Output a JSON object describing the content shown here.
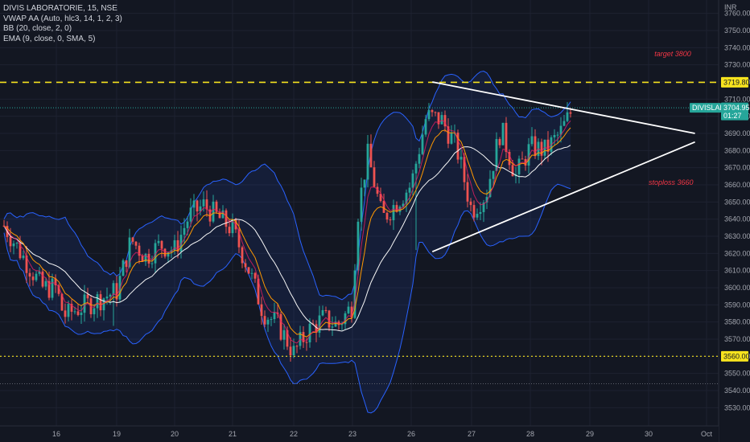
{
  "legend": {
    "title": "DIVIS LABORATORIE, 15, NSE",
    "vwap": "VWAP AA (Auto, hlc3, 14, 1, 2, 3)",
    "bb": "BB (20, close, 2, 0)",
    "ema": "EMA (9, close, 0, SMA, 5)"
  },
  "currency": "INR",
  "colors": {
    "background": "#131722",
    "bullish": "#26a69a",
    "bearish": "#ef5350",
    "bollinger": "#2962ff",
    "dashed_level": "#f7e31e",
    "trendline": "#ffffff",
    "annotation": "#f23645",
    "price_tag": "#26a69a"
  },
  "chart_data": {
    "type": "candlestick",
    "symbol": "DIVISLAB",
    "y_axis": {
      "min": 3530,
      "max": 3760,
      "ticks": [
        3760,
        3750,
        3740,
        3730,
        3720,
        3710,
        3700,
        3690,
        3680,
        3670,
        3660,
        3650,
        3640,
        3630,
        3620,
        3610,
        3600,
        3590,
        3580,
        3570,
        3560,
        3550,
        3540,
        3530
      ]
    },
    "x_axis": {
      "ticks": [
        "16",
        "19",
        "20",
        "21",
        "22",
        "23",
        "26",
        "27",
        "28",
        "29",
        "30",
        "Oct"
      ]
    },
    "levels": [
      {
        "label": "3719.80",
        "value": 3719.8,
        "style": "dashed"
      },
      {
        "label": "3560.00",
        "value": 3560.0,
        "style": "dotted"
      }
    ],
    "last_price": {
      "symbol": "DIVISLAB",
      "value": "3704.95",
      "countdown": "01:27"
    },
    "annotations": [
      {
        "text": "target 3800",
        "x_day": 30.1,
        "y": 3735
      },
      {
        "text": "stoploss 3660",
        "x_day": 30.0,
        "y": 3660
      }
    ],
    "trendlines": [
      {
        "x1": 26.35,
        "y1": 3720,
        "x2": 30.8,
        "y2": 3690
      },
      {
        "x1": 26.35,
        "y1": 3621,
        "x2": 30.8,
        "y2": 3685
      }
    ],
    "segments": [
      {
        "day": 15.0,
        "open": 3665,
        "close": 3640
      },
      {
        "day": 15.75,
        "open": 3640,
        "close": 3600
      },
      {
        "day": 16.0,
        "open": 3610,
        "close": 3600
      },
      {
        "day": 16.25,
        "open": 3600,
        "close": 3588
      },
      {
        "day": 16.5,
        "open": 3588,
        "close": 3583
      },
      {
        "day": 16.75,
        "open": 3583,
        "close": 3586
      },
      {
        "day": 19.0,
        "open": 3586,
        "close": 3598
      },
      {
        "day": 19.25,
        "open": 3598,
        "close": 3628
      },
      {
        "day": 19.5,
        "open": 3628,
        "close": 3618
      },
      {
        "day": 19.75,
        "open": 3618,
        "close": 3625
      },
      {
        "day": 20.0,
        "open": 3625,
        "close": 3622
      },
      {
        "day": 20.25,
        "open": 3622,
        "close": 3642
      },
      {
        "day": 20.5,
        "open": 3642,
        "close": 3648
      },
      {
        "day": 20.75,
        "open": 3648,
        "close": 3641
      },
      {
        "day": 21.0,
        "open": 3641,
        "close": 3634
      },
      {
        "day": 21.25,
        "open": 3634,
        "close": 3612
      },
      {
        "day": 21.5,
        "open": 3612,
        "close": 3586
      },
      {
        "day": 21.75,
        "open": 3586,
        "close": 3578
      },
      {
        "day": 22.0,
        "open": 3578,
        "close": 3562
      },
      {
        "day": 22.25,
        "open": 3562,
        "close": 3575
      },
      {
        "day": 22.5,
        "open": 3575,
        "close": 3582
      },
      {
        "day": 22.75,
        "open": 3582,
        "close": 3578
      },
      {
        "day": 23.0,
        "open": 3578,
        "close": 3590
      },
      {
        "day": 23.15,
        "open": 3590,
        "close": 3640
      },
      {
        "day": 23.5,
        "open": 3640,
        "close": 3678
      },
      {
        "day": 23.75,
        "open": 3678,
        "close": 3660
      },
      {
        "day": 24.0,
        "open": 3660,
        "close": 3640
      },
      {
        "day": 26.0,
        "open": 3640,
        "close": 3660
      },
      {
        "day": 26.25,
        "open": 3660,
        "close": 3700
      },
      {
        "day": 26.5,
        "open": 3700,
        "close": 3698
      },
      {
        "day": 26.75,
        "open": 3698,
        "close": 3682
      },
      {
        "day": 27.0,
        "open": 3682,
        "close": 3645
      },
      {
        "day": 27.25,
        "open": 3645,
        "close": 3655
      },
      {
        "day": 27.5,
        "open": 3655,
        "close": 3693
      },
      {
        "day": 27.75,
        "open": 3693,
        "close": 3665
      },
      {
        "day": 28.0,
        "open": 3665,
        "close": 3682
      },
      {
        "day": 28.25,
        "open": 3682,
        "close": 3680
      },
      {
        "day": 28.5,
        "open": 3680,
        "close": 3690
      },
      {
        "day": 28.72,
        "open": 3690,
        "close": 3704.95
      }
    ]
  }
}
